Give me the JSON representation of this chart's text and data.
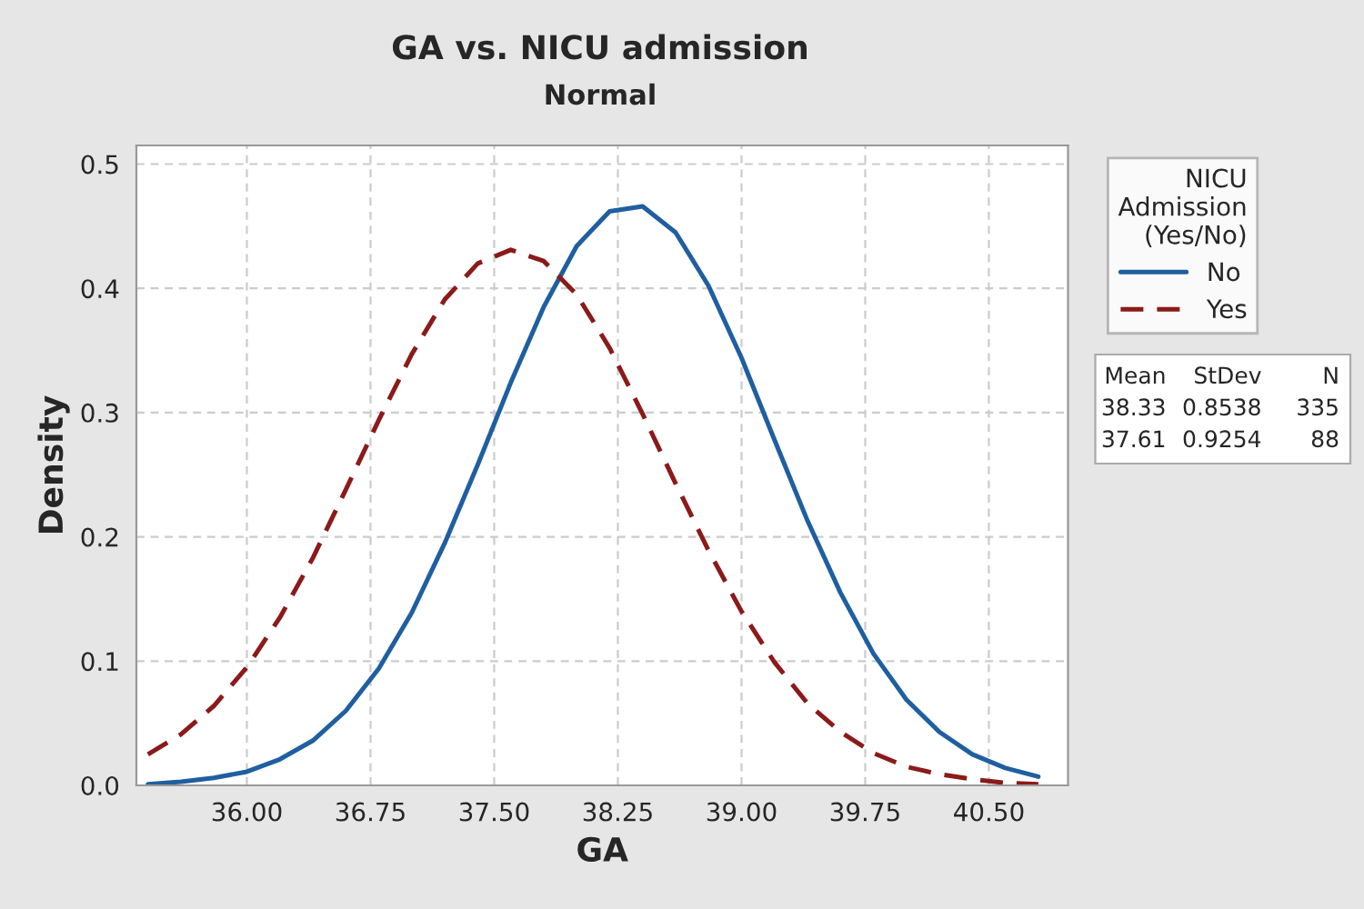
{
  "chart_data": {
    "type": "line",
    "title": "GA vs. NICU admission",
    "subtitle": "Normal",
    "xlabel": "GA",
    "ylabel": "Density",
    "legend_title": "NICU\nAdmission\n(Yes/No)",
    "legend": "right",
    "x": [
      35.4,
      35.6,
      35.8,
      36.0,
      36.2,
      36.4,
      36.6,
      36.8,
      37.0,
      37.2,
      37.4,
      37.6,
      37.8,
      38.0,
      38.2,
      38.4,
      38.6,
      38.8,
      39.0,
      39.2,
      39.4,
      39.6,
      39.8,
      40.0,
      40.2,
      40.4,
      40.6,
      40.8
    ],
    "series": [
      {
        "name": "No",
        "color": "#1f5fa0",
        "line_style": "solid",
        "values": [
          0.001,
          0.003,
          0.006,
          0.011,
          0.021,
          0.036,
          0.06,
          0.094,
          0.139,
          0.195,
          0.258,
          0.324,
          0.385,
          0.434,
          0.462,
          0.466,
          0.445,
          0.402,
          0.344,
          0.278,
          0.213,
          0.155,
          0.106,
          0.069,
          0.043,
          0.025,
          0.014,
          0.007
        ]
      },
      {
        "name": "Yes",
        "color": "#8b1a1a",
        "line_style": "dashed",
        "values": [
          0.025,
          0.041,
          0.064,
          0.095,
          0.135,
          0.183,
          0.238,
          0.294,
          0.347,
          0.391,
          0.42,
          0.431,
          0.422,
          0.395,
          0.352,
          0.299,
          0.243,
          0.189,
          0.14,
          0.099,
          0.066,
          0.043,
          0.026,
          0.015,
          0.009,
          0.005,
          0.002,
          0.001
        ]
      }
    ],
    "xlim": [
      35.33,
      40.98
    ],
    "ylim": [
      0,
      0.515
    ],
    "xticks": [
      {
        "value": 36.0,
        "label": "36.00"
      },
      {
        "value": 36.75,
        "label": "36.75"
      },
      {
        "value": 37.5,
        "label": "37.50"
      },
      {
        "value": 38.25,
        "label": "38.25"
      },
      {
        "value": 39.0,
        "label": "39.00"
      },
      {
        "value": 39.75,
        "label": "39.75"
      },
      {
        "value": 40.5,
        "label": "40.50"
      }
    ],
    "yticks": [
      {
        "value": 0,
        "label": "0.0"
      },
      {
        "value": 0.1,
        "label": "0.1"
      },
      {
        "value": 0.2,
        "label": "0.2"
      },
      {
        "value": 0.3,
        "label": "0.3"
      },
      {
        "value": 0.4,
        "label": "0.4"
      },
      {
        "value": 0.5,
        "label": "0.5"
      }
    ],
    "grid": true,
    "annotations": [
      "Mean",
      "StDev",
      "N",
      "38.33",
      "0.8538",
      "335",
      "37.61",
      "0.9254",
      "88"
    ]
  }
}
